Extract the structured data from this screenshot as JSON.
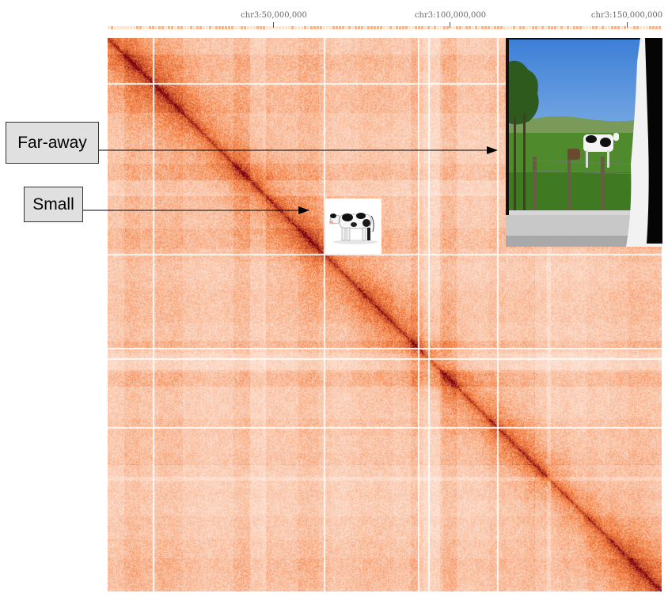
{
  "axis": {
    "ticks": [
      {
        "label": "chr3:50,000,000"
      },
      {
        "label": "chr3:100,000,000"
      },
      {
        "label": "chr3:150,000,000"
      }
    ]
  },
  "callouts": {
    "far_away": "Far-away",
    "small": "Small"
  },
  "colors": {
    "low": "#ffffff",
    "mid": "#f47c3c",
    "high": "#7a0010",
    "arrow": "#000000"
  },
  "icons": {
    "small_cow": "cow-photo-icon",
    "far_cow": "pasture-window-photo"
  }
}
